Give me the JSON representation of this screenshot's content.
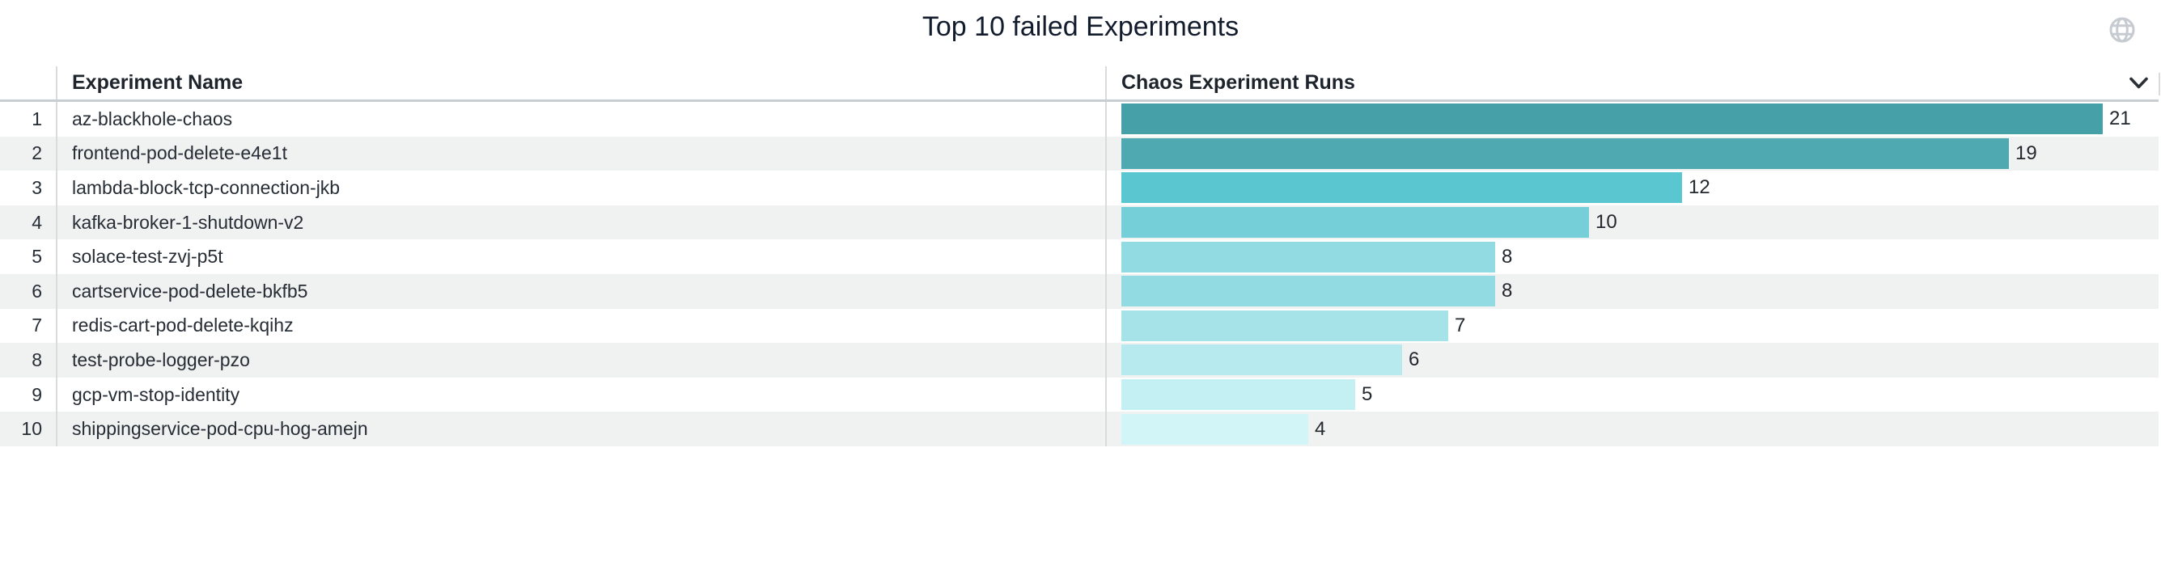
{
  "panel": {
    "title": "Top 10 failed Experiments",
    "globe_icon": "globe-icon",
    "header_collapse_icon": "chevron-down-icon"
  },
  "table": {
    "columns": [
      {
        "label": "Experiment Name"
      },
      {
        "label": "Chaos Experiment Runs"
      }
    ],
    "rows": [
      {
        "rank": "1",
        "name": "az-blackhole-chaos",
        "runs": 21,
        "bar_color": "#46a0a8"
      },
      {
        "rank": "2",
        "name": "frontend-pod-delete-e4e1t",
        "runs": 19,
        "bar_color": "#4fa9b1"
      },
      {
        "rank": "3",
        "name": "lambda-block-tcp-connection-jkb",
        "runs": 12,
        "bar_color": "#5ac6d0"
      },
      {
        "rank": "4",
        "name": "kafka-broker-1-shutdown-v2",
        "runs": 10,
        "bar_color": "#74cfd9"
      },
      {
        "rank": "5",
        "name": "solace-test-zvj-p5t",
        "runs": 8,
        "bar_color": "#93dbe2"
      },
      {
        "rank": "6",
        "name": "cartservice-pod-delete-bkfb5",
        "runs": 8,
        "bar_color": "#93dbe2"
      },
      {
        "rank": "7",
        "name": "redis-cart-pod-delete-kqihz",
        "runs": 7,
        "bar_color": "#a6e3e9"
      },
      {
        "rank": "8",
        "name": "test-probe-logger-pzo",
        "runs": 6,
        "bar_color": "#b7eaee"
      },
      {
        "rank": "9",
        "name": "gcp-vm-stop-identity",
        "runs": 5,
        "bar_color": "#c5f0f3"
      },
      {
        "rank": "10",
        "name": "shippingservice-pod-cpu-hog-amejn",
        "runs": 4,
        "bar_color": "#d2f5f7"
      }
    ],
    "stripe_color": "#f0f1f1",
    "grid_line_color": "#d9dbdd",
    "header_rule_color": "#c9ced3"
  },
  "chart_data": {
    "type": "bar",
    "orientation": "horizontal",
    "title": "Top 10 failed Experiments",
    "categories": [
      "az-blackhole-chaos",
      "frontend-pod-delete-e4e1t",
      "lambda-block-tcp-connection-jkb",
      "kafka-broker-1-shutdown-v2",
      "solace-test-zvj-p5t",
      "cartservice-pod-delete-bkfb5",
      "redis-cart-pod-delete-kqihz",
      "test-probe-logger-pzo",
      "gcp-vm-stop-identity",
      "shippingservice-pod-cpu-hog-amejn"
    ],
    "series": [
      {
        "name": "Chaos Experiment Runs",
        "values": [
          21,
          19,
          12,
          10,
          8,
          8,
          7,
          6,
          5,
          4
        ]
      }
    ],
    "xlim": [
      0,
      21
    ],
    "value_labels_shown": true,
    "grid": false,
    "legend": "none",
    "bar_colors": [
      "#46a0a8",
      "#4fa9b1",
      "#5ac6d0",
      "#74cfd9",
      "#93dbe2",
      "#93dbe2",
      "#a6e3e9",
      "#b7eaee",
      "#c5f0f3",
      "#d2f5f7"
    ]
  }
}
